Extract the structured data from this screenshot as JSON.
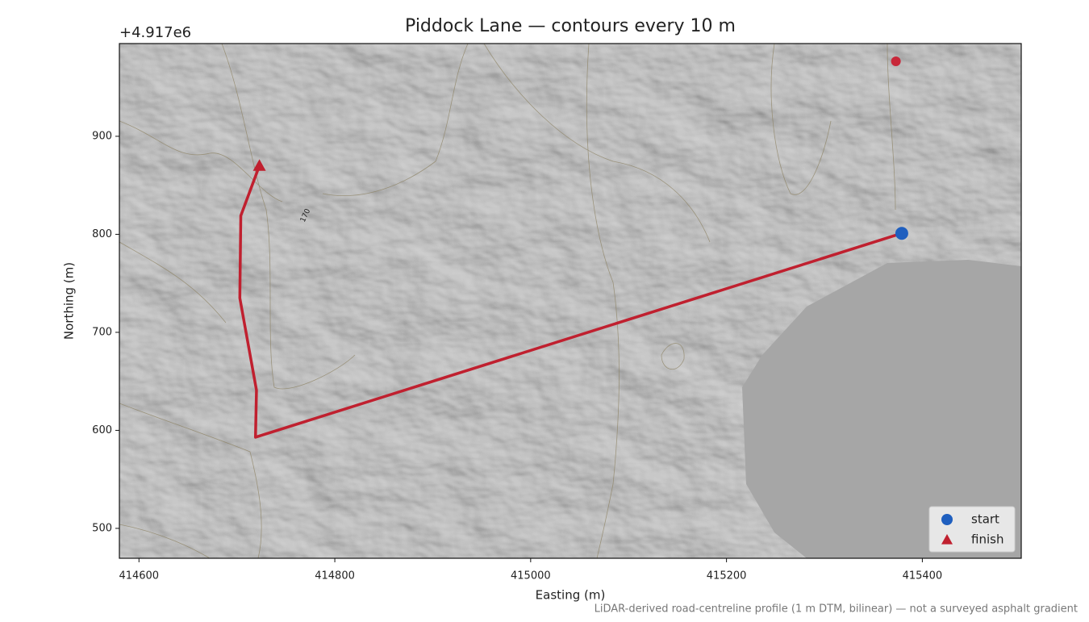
{
  "chart_data": {
    "type": "line",
    "title": "Piddock Lane — contours every 10 m",
    "x_label": "Easting (m)",
    "y_label": "Northing (m)",
    "y_offset_label": "+4.917e6",
    "footnote": "LiDAR-derived road-centreline profile (1 m DTM, bilinear) — not a surveyed asphalt gradient",
    "contour_label": "170",
    "xlim": [
      414580,
      415501
    ],
    "ylim": [
      469.5,
      994.6
    ],
    "xticks": [
      414600,
      414800,
      415000,
      415200,
      415400
    ],
    "yticks": [
      500,
      600,
      700,
      800,
      900
    ],
    "legend": "lower right",
    "route": {
      "color": "#c0202f",
      "x": [
        415379,
        414719,
        414720,
        414703,
        414704,
        414723
      ],
      "y": [
        801,
        593,
        641,
        735,
        819,
        870
      ]
    },
    "series": [
      {
        "name": "start",
        "marker": "circle",
        "color": "#1f5fbf",
        "x": [
          415379
        ],
        "y": [
          801
        ]
      },
      {
        "name": "finish",
        "marker": "triangle",
        "color": "#c0202f",
        "x": [
          414723
        ],
        "y": [
          870
        ]
      }
    ],
    "points": {
      "color": "#c8283a",
      "x": [
        415373
      ],
      "y": [
        976.5
      ]
    }
  }
}
